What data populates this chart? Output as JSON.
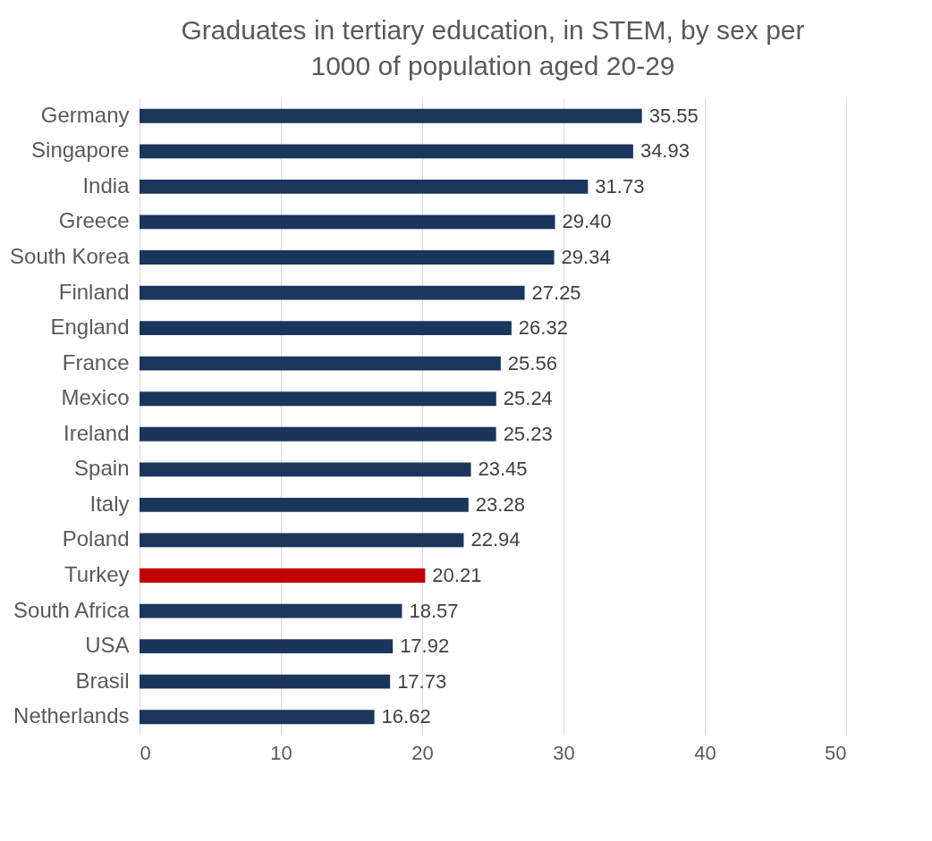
{
  "chart_data": {
    "type": "bar",
    "orientation": "horizontal",
    "title": "Graduates in tertiary education, in STEM, by sex per\n1000 of population aged 20-29",
    "categories": [
      "Germany",
      "Singapore",
      "India",
      "Greece",
      "South Korea",
      "Finland",
      "England",
      "France",
      "Mexico",
      "Ireland",
      "Spain",
      "Italy",
      "Poland",
      "Turkey",
      "South Africa",
      "USA",
      "Brasil",
      "Netherlands"
    ],
    "values": [
      35.55,
      34.93,
      31.73,
      29.4,
      29.34,
      27.25,
      26.32,
      25.56,
      25.24,
      25.23,
      23.45,
      23.28,
      22.94,
      20.21,
      18.57,
      17.92,
      17.73,
      16.62
    ],
    "value_labels": [
      "35.55",
      "34.93",
      "31.73",
      "29.40",
      "29.34",
      "27.25",
      "26.32",
      "25.56",
      "25.24",
      "25.23",
      "23.45",
      "23.28",
      "22.94",
      "20.21",
      "18.57",
      "17.92",
      "17.73",
      "16.62"
    ],
    "colors": [
      "#1b365d",
      "#1b365d",
      "#1b365d",
      "#1b365d",
      "#1b365d",
      "#1b365d",
      "#1b365d",
      "#1b365d",
      "#1b365d",
      "#1b365d",
      "#1b365d",
      "#1b365d",
      "#1b365d",
      "#c00000",
      "#1b365d",
      "#1b365d",
      "#1b365d",
      "#1b365d"
    ],
    "xlim": [
      0,
      50
    ],
    "xticks": [
      0,
      10,
      20,
      30,
      40,
      50
    ],
    "grid": "x"
  }
}
